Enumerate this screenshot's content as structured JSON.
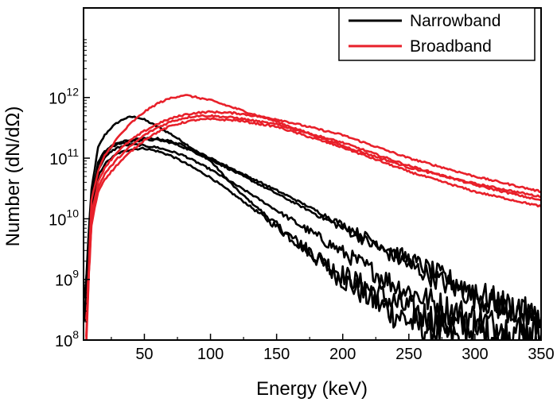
{
  "chart_data": {
    "type": "line",
    "title": "",
    "xlabel": "Energy (keV)",
    "ylabel": "Number (dN/dΩ)",
    "xlim": [
      4,
      350
    ],
    "ylim": [
      100000000,
      30000000000000
    ],
    "y_scale": "log",
    "grid": false,
    "legend_position": "top-right",
    "x_ticks": [
      50,
      100,
      150,
      200,
      250,
      300,
      350
    ],
    "x_tick_labels": [
      "50",
      "100",
      "150",
      "200",
      "250",
      "300",
      "350"
    ],
    "y_ticks": [
      {
        "value": 100000000,
        "base": "10",
        "exp": "8"
      },
      {
        "value": 1000000000,
        "base": "10",
        "exp": "9"
      },
      {
        "value": 10000000000,
        "base": "10",
        "exp": "10"
      },
      {
        "value": 100000000000,
        "base": "10",
        "exp": "11"
      },
      {
        "value": 1000000000000,
        "base": "10",
        "exp": "12"
      }
    ],
    "legend": [
      {
        "label": "Narrowband",
        "color": "#000000"
      },
      {
        "label": "Broadband",
        "color": "#e8202a"
      }
    ],
    "series": [
      {
        "group": "Narrowband",
        "color": "#000000",
        "x": [
          5,
          10,
          15,
          20,
          25,
          30,
          35,
          40,
          45,
          50,
          60,
          70,
          80,
          100,
          120,
          150,
          180,
          200,
          230,
          260,
          290
        ],
        "y": [
          500000000.0,
          30000000000.0,
          150000000000.0,
          240000000000.0,
          320000000000.0,
          390000000000.0,
          450000000000.0,
          480000000000.0,
          470000000000.0,
          430000000000.0,
          330000000000.0,
          250000000000.0,
          180000000000.0,
          90000000000.0,
          30000000000.0,
          8000000000.0,
          2200000000.0,
          1000000000.0,
          350000000.0,
          160000000.0,
          100000000.0
        ]
      },
      {
        "group": "Narrowband",
        "color": "#000000",
        "x": [
          5,
          10,
          15,
          20,
          25,
          30,
          40,
          50,
          60,
          70,
          80,
          100,
          130,
          160,
          200,
          240,
          280,
          320,
          350
        ],
        "y": [
          300000000.0,
          12000000000.0,
          50000000000.0,
          80000000000.0,
          100000000000.0,
          120000000000.0,
          140000000000.0,
          145000000000.0,
          130000000000.0,
          110000000000.0,
          85000000000.0,
          48000000000.0,
          16000000000.0,
          5000000000.0,
          1200000000.0,
          400000000.0,
          180000000.0,
          120000000.0,
          100000000.0
        ]
      },
      {
        "group": "Narrowband",
        "color": "#000000",
        "x": [
          5,
          10,
          15,
          20,
          25,
          30,
          40,
          50,
          60,
          70,
          80,
          100,
          130,
          160,
          200,
          240,
          280,
          320,
          350
        ],
        "y": [
          300000000.0,
          15000000000.0,
          65000000000.0,
          100000000000.0,
          130000000000.0,
          150000000000.0,
          170000000000.0,
          160000000000.0,
          150000000000.0,
          130000000000.0,
          110000000000.0,
          65000000000.0,
          26000000000.0,
          10000000000.0,
          2800000000.0,
          800000000.0,
          320000000.0,
          160000000.0,
          120000000.0
        ]
      },
      {
        "group": "Narrowband",
        "color": "#000000",
        "x": [
          5,
          10,
          15,
          20,
          25,
          30,
          40,
          50,
          60,
          70,
          80,
          100,
          130,
          160,
          200,
          240,
          280,
          320,
          350
        ],
        "y": [
          300000000.0,
          18000000000.0,
          75000000000.0,
          120000000000.0,
          150000000000.0,
          170000000000.0,
          190000000000.0,
          200000000000.0,
          200000000000.0,
          180000000000.0,
          150000000000.0,
          95000000000.0,
          44000000000.0,
          20000000000.0,
          7000000000.0,
          2300000000.0,
          800000000.0,
          350000000.0,
          200000000.0
        ]
      },
      {
        "group": "Narrowband",
        "color": "#000000",
        "x": [
          5,
          10,
          15,
          20,
          25,
          30,
          40,
          50,
          60,
          70,
          80,
          100,
          130,
          160,
          200,
          240,
          280,
          320,
          350
        ],
        "y": [
          300000000.0,
          20000000000.0,
          85000000000.0,
          130000000000.0,
          160000000000.0,
          180000000000.0,
          200000000000.0,
          210000000000.0,
          210000000000.0,
          190000000000.0,
          160000000000.0,
          100000000000.0,
          48000000000.0,
          23000000000.0,
          8000000000.0,
          2800000000.0,
          1000000000.0,
          400000000.0,
          220000000.0
        ]
      },
      {
        "group": "Broadband",
        "color": "#e8202a",
        "x": [
          6,
          10,
          15,
          20,
          30,
          40,
          50,
          60,
          70,
          80,
          90,
          100,
          120,
          150,
          200,
          250,
          300,
          350
        ],
        "y": [
          150000000.0,
          20000000000.0,
          60000000000.0,
          110000000000.0,
          220000000000.0,
          380000000000.0,
          580000000000.0,
          800000000000.0,
          980000000000.0,
          1100000000000.0,
          1000000000000.0,
          900000000000.0,
          650000000000.0,
          400000000000.0,
          160000000000.0,
          70000000000.0,
          38000000000.0,
          23000000000.0
        ]
      },
      {
        "group": "Broadband",
        "color": "#e8202a",
        "x": [
          6,
          10,
          15,
          20,
          30,
          40,
          50,
          60,
          70,
          80,
          90,
          100,
          120,
          150,
          200,
          250,
          300,
          350
        ],
        "y": [
          150000000.0,
          12000000000.0,
          40000000000.0,
          70000000000.0,
          130000000000.0,
          200000000000.0,
          280000000000.0,
          370000000000.0,
          450000000000.0,
          520000000000.0,
          560000000000.0,
          580000000000.0,
          550000000000.0,
          440000000000.0,
          240000000000.0,
          100000000000.0,
          50000000000.0,
          28000000000.0
        ]
      },
      {
        "group": "Broadband",
        "color": "#e8202a",
        "x": [
          6,
          10,
          15,
          20,
          30,
          40,
          50,
          60,
          70,
          80,
          90,
          100,
          120,
          150,
          200,
          250,
          300,
          350
        ],
        "y": [
          150000000.0,
          10000000000.0,
          33000000000.0,
          55000000000.0,
          100000000000.0,
          160000000000.0,
          240000000000.0,
          320000000000.0,
          400000000000.0,
          460000000000.0,
          500000000000.0,
          500000000000.0,
          460000000000.0,
          360000000000.0,
          180000000000.0,
          75000000000.0,
          36000000000.0,
          20000000000.0
        ]
      },
      {
        "group": "Broadband",
        "color": "#e8202a",
        "x": [
          6,
          10,
          15,
          20,
          30,
          40,
          50,
          60,
          70,
          80,
          90,
          100,
          120,
          150,
          200,
          250,
          300,
          350
        ],
        "y": [
          150000000.0,
          8000000000.0,
          28000000000.0,
          45000000000.0,
          80000000000.0,
          130000000000.0,
          200000000000.0,
          270000000000.0,
          340000000000.0,
          390000000000.0,
          430000000000.0,
          440000000000.0,
          420000000000.0,
          330000000000.0,
          150000000000.0,
          60000000000.0,
          28000000000.0,
          16000000000.0
        ]
      }
    ]
  }
}
